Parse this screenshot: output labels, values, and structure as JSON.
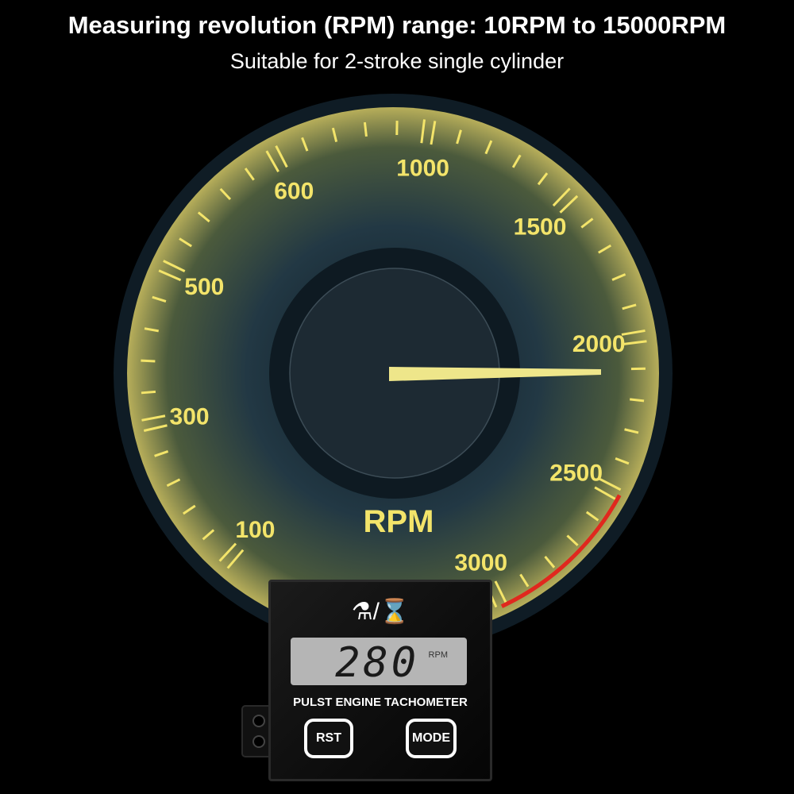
{
  "header": {
    "title": "Measuring revolution (RPM) range: 10RPM to 15000RPM",
    "subtitle": "Suitable for 2-stroke single cylinder"
  },
  "gauge": {
    "labels": [
      "100",
      "300",
      "500",
      "600",
      "1000",
      "1500",
      "2000",
      "2500",
      "3000"
    ],
    "unit": "RPM",
    "colors": {
      "scale": "#f3e46a",
      "redline": "#e0281e",
      "face": "#1b2a35"
    }
  },
  "device": {
    "icons": [
      "engine-hour-icon",
      "hourglass-icon"
    ],
    "separator": "/",
    "reading": "280",
    "reading_unit": "RPM",
    "model": "PULST ENGINE TACHOMETER",
    "buttons": {
      "reset": "RST",
      "mode": "MODE"
    }
  }
}
